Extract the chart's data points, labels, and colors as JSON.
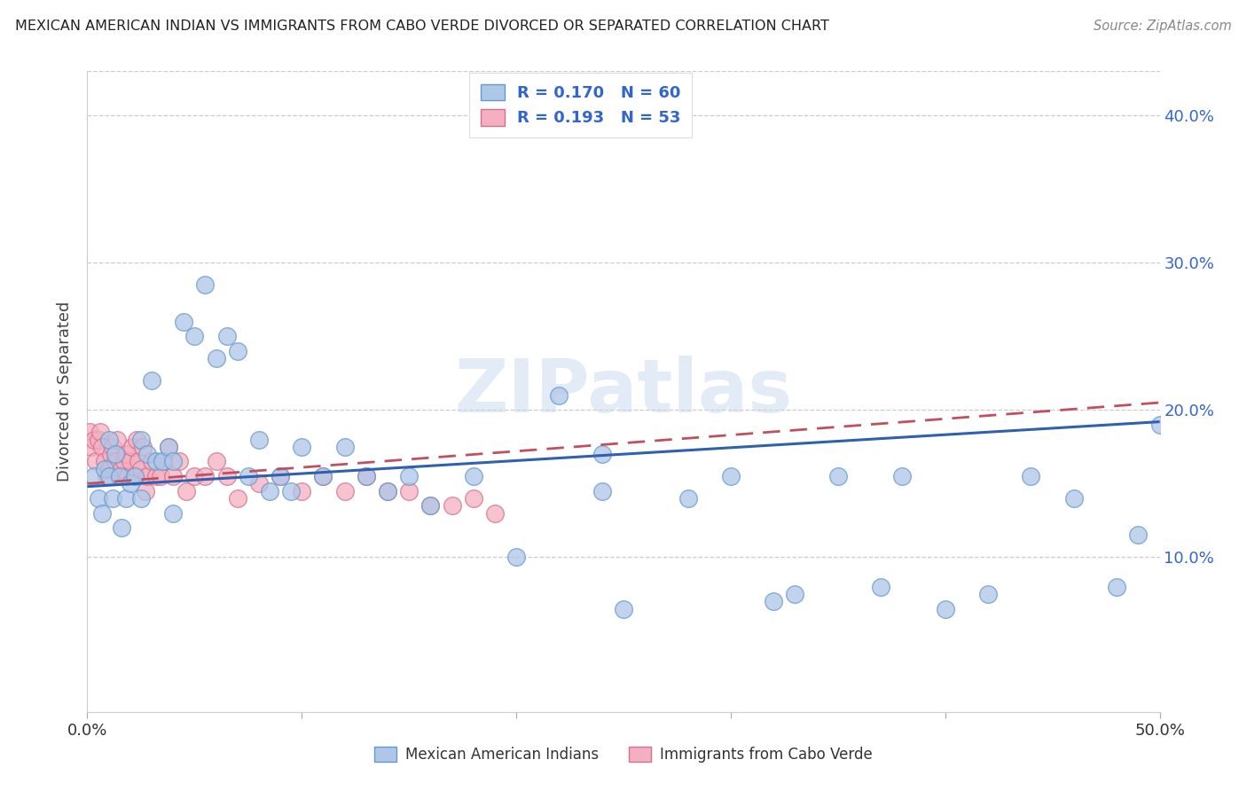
{
  "title": "MEXICAN AMERICAN INDIAN VS IMMIGRANTS FROM CABO VERDE DIVORCED OR SEPARATED CORRELATION CHART",
  "source": "Source: ZipAtlas.com",
  "ylabel": "Divorced or Separated",
  "xlim": [
    0.0,
    0.5
  ],
  "ylim": [
    -0.005,
    0.43
  ],
  "ytick_vals": [
    0.1,
    0.2,
    0.3,
    0.4
  ],
  "ytick_labels": [
    "10.0%",
    "20.0%",
    "30.0%",
    "40.0%"
  ],
  "legend1_r": "0.170",
  "legend1_n": "60",
  "legend2_r": "0.193",
  "legend2_n": "53",
  "scatter1_color": "#aec6e8",
  "scatter2_color": "#f4afc0",
  "scatter1_edgecolor": "#6699cc",
  "scatter2_edgecolor": "#d47090",
  "trend1_color": "#3060b0",
  "trend2_color": "#c05060",
  "watermark": "ZIPatlas",
  "blue_x": [
    0.003,
    0.005,
    0.007,
    0.008,
    0.01,
    0.01,
    0.012,
    0.013,
    0.015,
    0.016,
    0.018,
    0.02,
    0.022,
    0.025,
    0.025,
    0.028,
    0.03,
    0.032,
    0.035,
    0.038,
    0.04,
    0.04,
    0.045,
    0.05,
    0.055,
    0.06,
    0.065,
    0.07,
    0.075,
    0.08,
    0.085,
    0.09,
    0.095,
    0.1,
    0.11,
    0.12,
    0.13,
    0.14,
    0.15,
    0.16,
    0.18,
    0.2,
    0.22,
    0.24,
    0.24,
    0.25,
    0.28,
    0.3,
    0.32,
    0.33,
    0.35,
    0.37,
    0.38,
    0.4,
    0.42,
    0.44,
    0.46,
    0.48,
    0.49,
    0.5
  ],
  "blue_y": [
    0.155,
    0.14,
    0.13,
    0.16,
    0.155,
    0.18,
    0.14,
    0.17,
    0.155,
    0.12,
    0.14,
    0.15,
    0.155,
    0.14,
    0.18,
    0.17,
    0.22,
    0.165,
    0.165,
    0.175,
    0.13,
    0.165,
    0.26,
    0.25,
    0.285,
    0.235,
    0.25,
    0.24,
    0.155,
    0.18,
    0.145,
    0.155,
    0.145,
    0.175,
    0.155,
    0.175,
    0.155,
    0.145,
    0.155,
    0.135,
    0.155,
    0.1,
    0.21,
    0.145,
    0.17,
    0.065,
    0.14,
    0.155,
    0.07,
    0.075,
    0.155,
    0.08,
    0.155,
    0.065,
    0.075,
    0.155,
    0.14,
    0.08,
    0.115,
    0.19
  ],
  "pink_x": [
    0.001,
    0.002,
    0.003,
    0.004,
    0.005,
    0.006,
    0.007,
    0.008,
    0.009,
    0.01,
    0.011,
    0.012,
    0.013,
    0.014,
    0.015,
    0.016,
    0.017,
    0.018,
    0.019,
    0.02,
    0.021,
    0.022,
    0.023,
    0.024,
    0.025,
    0.026,
    0.027,
    0.028,
    0.03,
    0.032,
    0.034,
    0.036,
    0.038,
    0.04,
    0.043,
    0.046,
    0.05,
    0.055,
    0.06,
    0.065,
    0.07,
    0.08,
    0.09,
    0.1,
    0.11,
    0.12,
    0.13,
    0.14,
    0.15,
    0.16,
    0.17,
    0.18,
    0.19
  ],
  "pink_y": [
    0.185,
    0.175,
    0.18,
    0.165,
    0.18,
    0.185,
    0.175,
    0.165,
    0.155,
    0.16,
    0.17,
    0.175,
    0.165,
    0.18,
    0.155,
    0.16,
    0.165,
    0.17,
    0.155,
    0.165,
    0.175,
    0.155,
    0.18,
    0.165,
    0.16,
    0.175,
    0.145,
    0.155,
    0.165,
    0.155,
    0.155,
    0.165,
    0.175,
    0.155,
    0.165,
    0.145,
    0.155,
    0.155,
    0.165,
    0.155,
    0.14,
    0.15,
    0.155,
    0.145,
    0.155,
    0.145,
    0.155,
    0.145,
    0.145,
    0.135,
    0.135,
    0.14,
    0.13
  ]
}
